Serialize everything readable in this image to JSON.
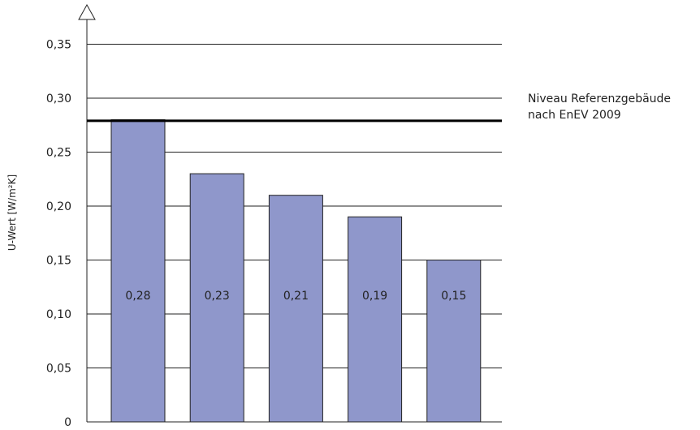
{
  "chart_data": {
    "type": "bar",
    "categories": [
      "",
      "",
      "",
      "",
      ""
    ],
    "values": [
      0.28,
      0.23,
      0.21,
      0.19,
      0.15
    ],
    "value_labels": [
      "0,28",
      "0,23",
      "0,21",
      "0,19",
      "0,15"
    ],
    "title": "",
    "xlabel": "",
    "ylabel": "U-Wert [W/m²K]",
    "ylim": [
      0,
      0.38
    ],
    "yticks": [
      0,
      0.05,
      0.1,
      0.15,
      0.2,
      0.25,
      0.3,
      0.35
    ],
    "ytick_labels": [
      "0",
      "0,05",
      "0,10",
      "0,15",
      "0,20",
      "0,25",
      "0,30",
      "0,35"
    ],
    "grid": true,
    "reference_line": {
      "value": 0.279,
      "label_line1": "Niveau Referenzgebäude",
      "label_line2": "nach EnEV 2009"
    }
  },
  "colors": {
    "bar_fill": "#8f97cb",
    "bar_stroke": "#222222",
    "grid": "#222222",
    "reference": "#000000"
  }
}
